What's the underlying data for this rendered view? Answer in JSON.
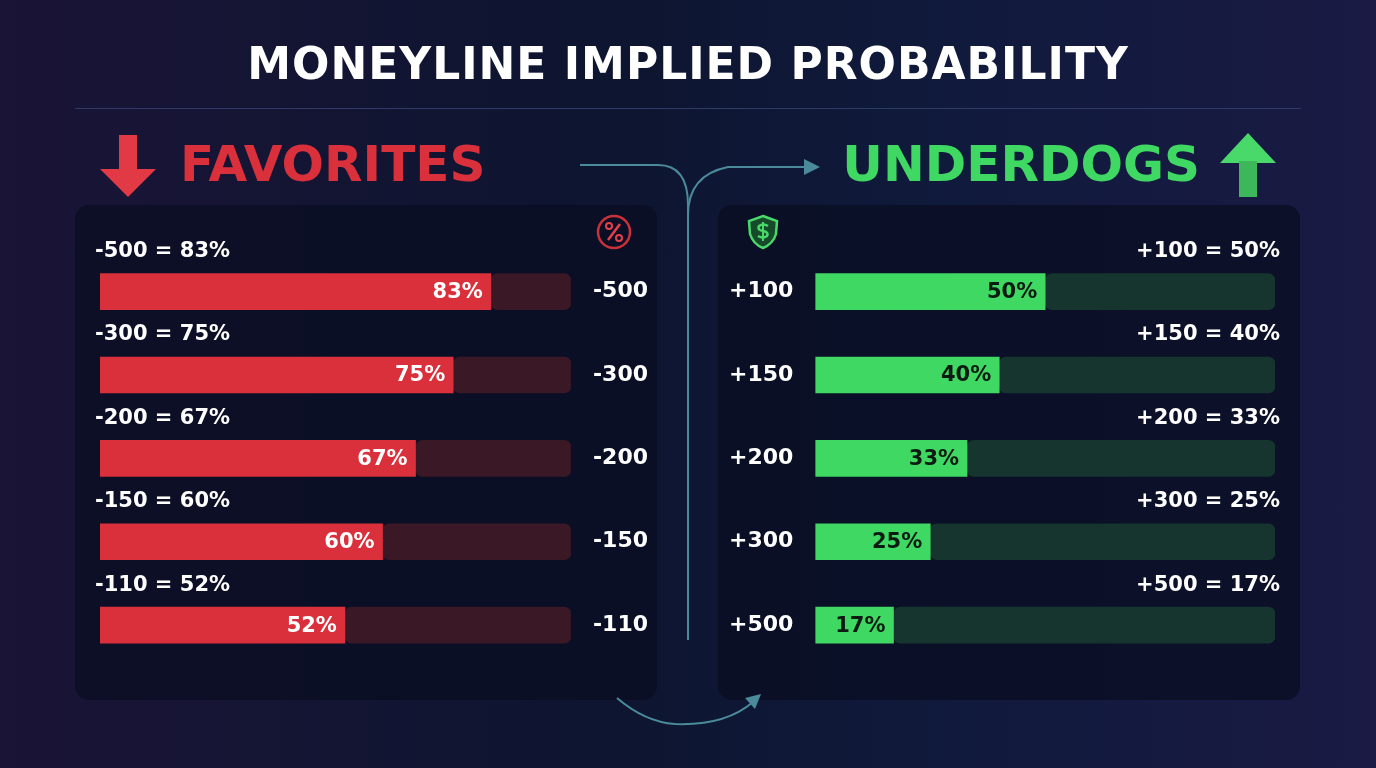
{
  "chart_data": [
    {
      "type": "other",
      "title": "MONEYLINE IMPLIED PROBABILITY"
    },
    {
      "type": "bar",
      "title": "FAVORITES",
      "orientation": "horizontal",
      "categories": [
        "-500",
        "-300",
        "-200",
        "-150",
        "-110"
      ],
      "xlim": [
        0,
        100
      ],
      "tick_labels": "y",
      "stacked": true,
      "series": [
        {
          "color": "#d9303c",
          "values": [
            83,
            75,
            67,
            60,
            52
          ],
          "value_labels": [
            "83%",
            "75%",
            "67%",
            "60%",
            "52%"
          ]
        },
        {
          "color": "#3a1826",
          "values": [
            17,
            25,
            33,
            40,
            48
          ]
        }
      ],
      "annotations": [
        "-500 = 83%",
        "-300 = 75%",
        "-200 = 67%",
        "-150 = 60%",
        "-110 = 52%"
      ]
    },
    {
      "type": "bar",
      "title": "UNDERDOGS",
      "orientation": "horizontal",
      "categories": [
        "+100",
        "+150",
        "+200",
        "+300",
        "+500"
      ],
      "xlim": [
        0,
        100
      ],
      "tick_labels": "y",
      "stacked": true,
      "series": [
        {
          "color": "#3fd862",
          "values": [
            50,
            40,
            33,
            25,
            17
          ],
          "value_labels": [
            "50%",
            "40%",
            "33%",
            "25%",
            "17%"
          ]
        },
        {
          "color": "#15352e",
          "values": [
            50,
            60,
            67,
            75,
            83
          ]
        }
      ],
      "annotations": [
        "+100 = 50%",
        "+150 = 40%",
        "+200 = 33%",
        "+300 = 25%",
        "+500 = 17%"
      ]
    }
  ]
}
